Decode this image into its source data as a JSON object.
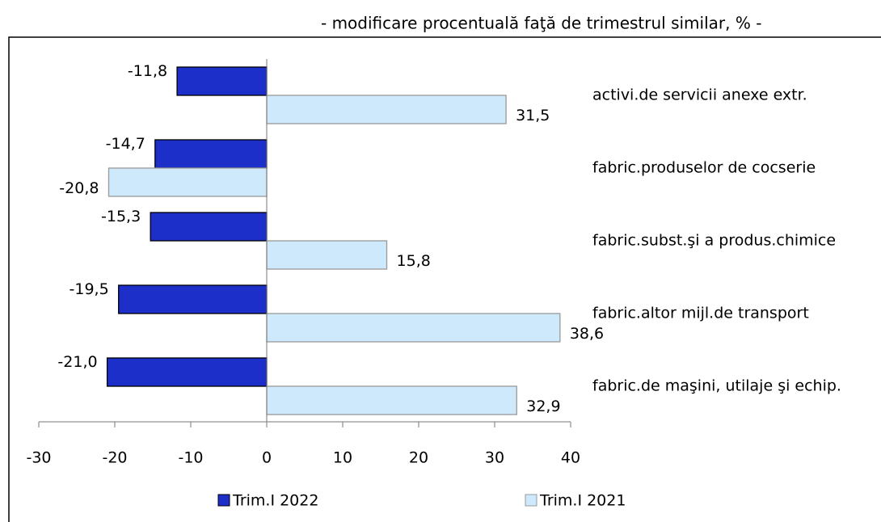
{
  "chart_data": {
    "type": "barh",
    "subtitle": "- modificare procentuală faţă de trimestrul similar, % -",
    "categories": [
      "activi.de servicii anexe extr.",
      "fabric.produselor de cocserie",
      "fabric.subst.şi a produs.chimice",
      "fabric.altor mijl.de transport",
      "fabric.de maşini, utilaje şi echip."
    ],
    "series": [
      {
        "name": "Trim.I 2022",
        "color": "#1c2fc9",
        "values": [
          -11.8,
          -14.7,
          -15.3,
          -19.5,
          -21.0
        ],
        "value_labels": [
          "-11,8",
          "-14,7",
          "-15,3",
          "-19,5",
          "-21,0"
        ]
      },
      {
        "name": "Trim.I 2021",
        "color": "#cde9fb",
        "values": [
          31.5,
          -20.8,
          15.8,
          38.6,
          32.9
        ],
        "value_labels": [
          "31,5",
          "-20,8",
          "15,8",
          "38,6",
          "32,9"
        ]
      }
    ],
    "xlim": [
      -30,
      40
    ],
    "xticks": [
      -30,
      -20,
      -10,
      0,
      10,
      20,
      30,
      40
    ],
    "legend": "bottom"
  }
}
